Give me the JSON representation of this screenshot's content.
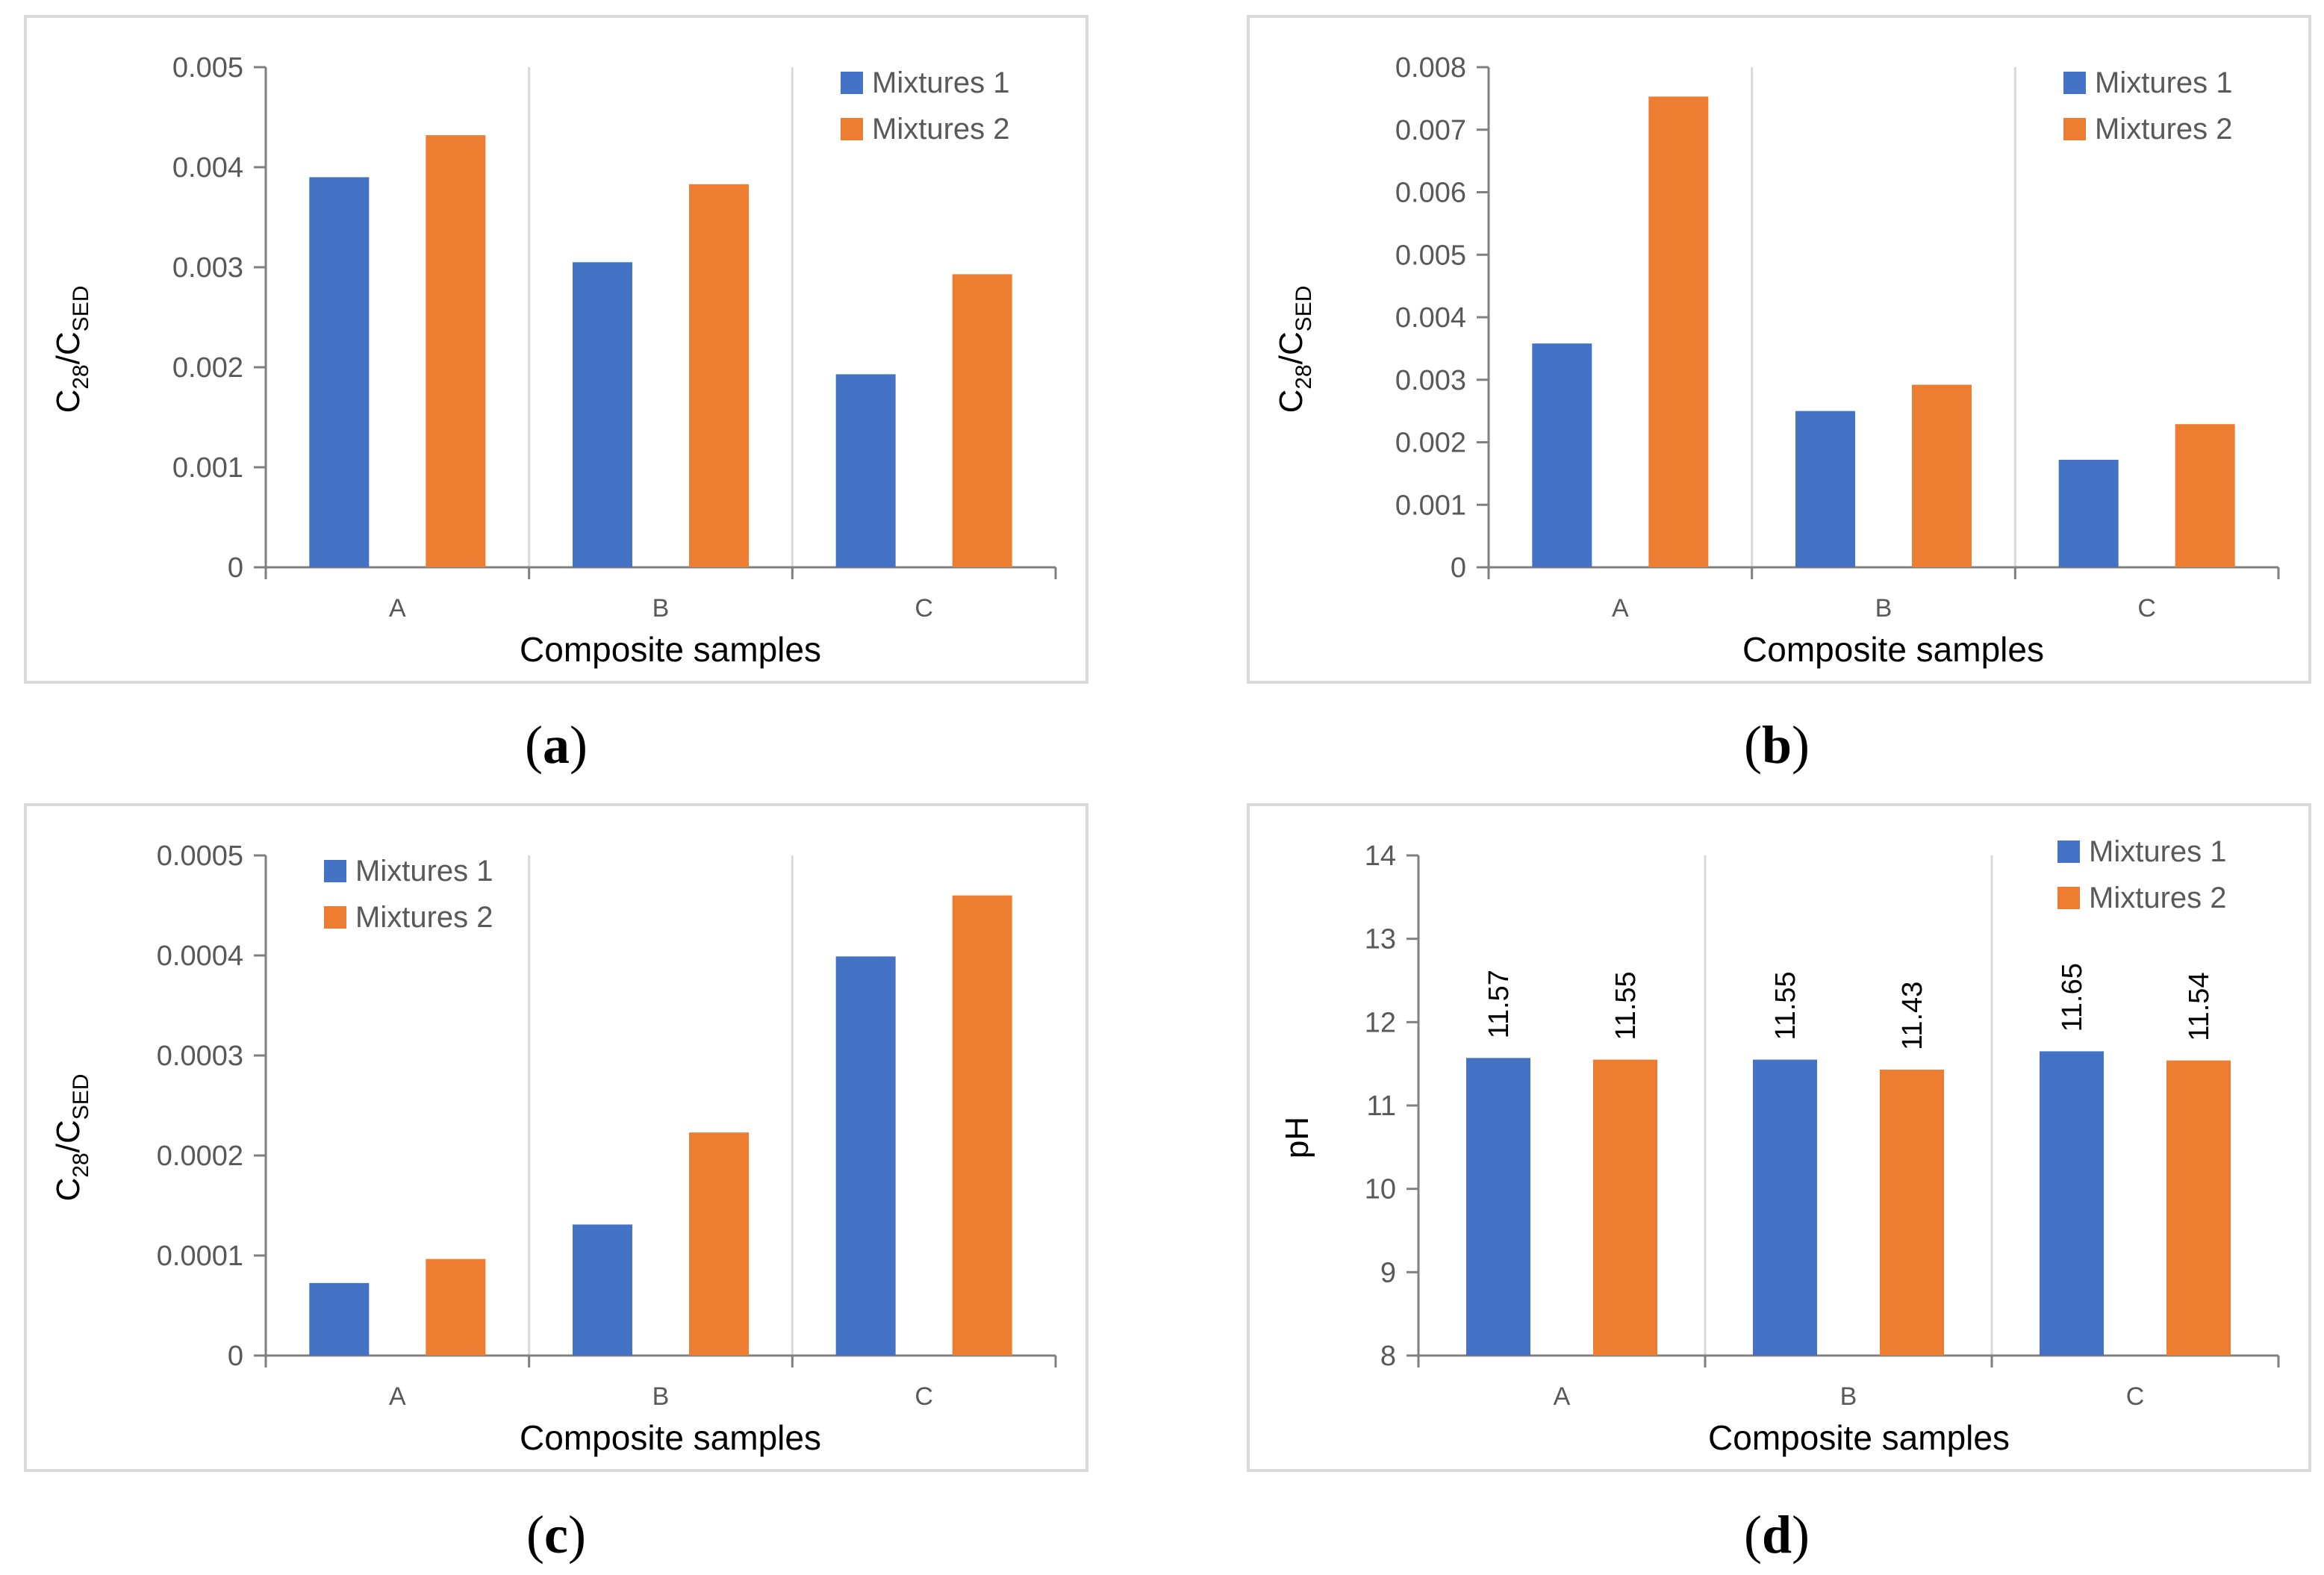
{
  "colors": {
    "series1": "#4472c4",
    "series2": "#ed7d31",
    "axis": "#808080",
    "divider": "#d9d9d9",
    "text": "#595959"
  },
  "panels": [
    {
      "letter": "a"
    },
    {
      "letter": "b"
    },
    {
      "letter": "c"
    },
    {
      "letter": "d"
    }
  ],
  "chart_data": [
    {
      "type": "bar",
      "panel": "a",
      "title": "",
      "xlabel": "Composite samples",
      "ylabel": {
        "main": "C",
        "sub1": "28",
        "mid": "/C",
        "sub2": "SED"
      },
      "categories": [
        "A",
        "B",
        "C"
      ],
      "series": [
        {
          "name": "Mixtures 1",
          "values": [
            0.0039,
            0.00305,
            0.00193
          ]
        },
        {
          "name": "Mixtures 2",
          "values": [
            0.00432,
            0.00383,
            0.00293
          ]
        }
      ],
      "ylim": [
        0,
        0.005
      ],
      "yticks": [
        "0",
        "0.001",
        "0.002",
        "0.003",
        "0.004",
        "0.005"
      ],
      "legend": "top-right",
      "data_labels": false
    },
    {
      "type": "bar",
      "panel": "b",
      "title": "",
      "xlabel": "Composite samples",
      "ylabel": {
        "main": "C",
        "sub1": "28",
        "mid": "/C",
        "sub2": "SED"
      },
      "categories": [
        "A",
        "B",
        "C"
      ],
      "series": [
        {
          "name": "Mixtures 1",
          "values": [
            0.00358,
            0.0025,
            0.00172
          ]
        },
        {
          "name": "Mixtures 2",
          "values": [
            0.00753,
            0.00292,
            0.00229
          ]
        }
      ],
      "ylim": [
        0,
        0.008
      ],
      "yticks": [
        "0",
        "0.001",
        "0.002",
        "0.003",
        "0.004",
        "0.005",
        "0.006",
        "0.007",
        "0.008"
      ],
      "legend": "top-right",
      "data_labels": false
    },
    {
      "type": "bar",
      "panel": "c",
      "title": "",
      "xlabel": "Composite samples",
      "ylabel": {
        "main": "C",
        "sub1": "28",
        "mid": "/C",
        "sub2": "SED"
      },
      "categories": [
        "A",
        "B",
        "C"
      ],
      "series": [
        {
          "name": "Mixtures 1",
          "values": [
            7.25e-05,
            0.000131,
            0.000399
          ]
        },
        {
          "name": "Mixtures 2",
          "values": [
            9.65e-05,
            0.000223,
            0.00046
          ]
        }
      ],
      "ylim": [
        0,
        0.0005
      ],
      "yticks": [
        "0",
        "0.0001",
        "0.0002",
        "0.0003",
        "0.0004",
        "0.0005"
      ],
      "legend": "top-left",
      "data_labels": false
    },
    {
      "type": "bar",
      "panel": "d",
      "title": "",
      "xlabel": "Composite samples",
      "ylabel": {
        "main": "pH",
        "sub1": "",
        "mid": "",
        "sub2": ""
      },
      "categories": [
        "A",
        "B",
        "C"
      ],
      "series": [
        {
          "name": "Mixtures 1",
          "values": [
            11.57,
            11.55,
            11.65
          ],
          "labels": [
            "11.57",
            "11.55",
            "11.65"
          ]
        },
        {
          "name": "Mixtures 2",
          "values": [
            11.55,
            11.43,
            11.54
          ],
          "labels": [
            "11.55",
            "11.43",
            "11.54"
          ]
        }
      ],
      "ylim": [
        8,
        14
      ],
      "yticks": [
        "8",
        "9",
        "10",
        "11",
        "12",
        "13",
        "14"
      ],
      "legend": "top-right",
      "data_labels": true
    }
  ]
}
